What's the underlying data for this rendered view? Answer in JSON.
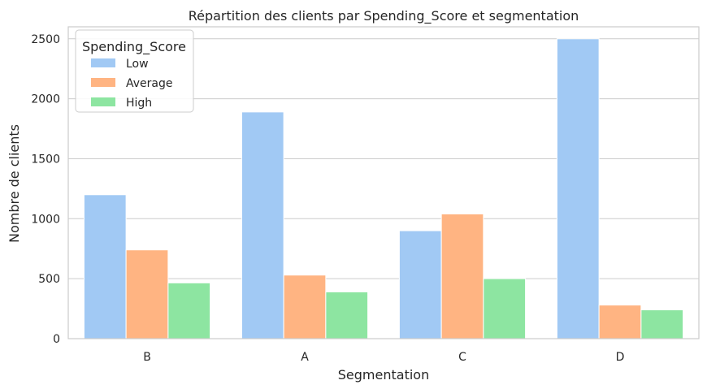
{
  "chart_data": {
    "type": "bar",
    "title": "Répartition des clients par Spending_Score et segmentation",
    "xlabel": "Segmentation",
    "ylabel": "Nombre de clients",
    "categories": [
      "B",
      "A",
      "C",
      "D"
    ],
    "ylim": [
      0,
      2600
    ],
    "yticks": [
      0,
      500,
      1000,
      1500,
      2000,
      2500
    ],
    "grid": true,
    "legend": {
      "title": "Spending_Score",
      "placement": "top-left"
    },
    "series": [
      {
        "name": "Low",
        "color": "#a1c9f4",
        "values": [
          1200,
          1890,
          900,
          2500
        ]
      },
      {
        "name": "Average",
        "color": "#ffb482",
        "values": [
          740,
          530,
          1040,
          280
        ]
      },
      {
        "name": "High",
        "color": "#8de5a1",
        "values": [
          465,
          390,
          500,
          240
        ]
      }
    ]
  }
}
